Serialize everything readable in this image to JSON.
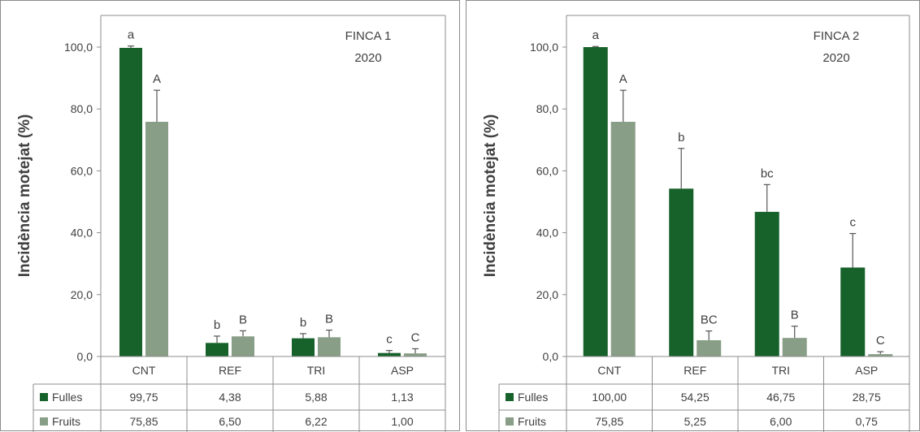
{
  "colors": {
    "fulles": "#17612a",
    "fruits": "#889e86",
    "text": "#404040",
    "grid": "#8c8c8c"
  },
  "chart_data": [
    {
      "type": "bar",
      "title": "FINCA 1",
      "subtitle": "2020",
      "ylabel": "Incidència motejat (%)",
      "ylim": [
        0,
        100
      ],
      "yticks": [
        "0,0",
        "20,0",
        "40,0",
        "60,0",
        "80,0",
        "100,0"
      ],
      "categories": [
        "CNT",
        "REF",
        "TRI",
        "ASP"
      ],
      "series": [
        {
          "name": "Fulles",
          "values": [
            99.75,
            4.38,
            5.88,
            1.13
          ],
          "errors": [
            0.6,
            2.2,
            1.5,
            0.8
          ],
          "letters": [
            "a",
            "b",
            "b",
            "c"
          ],
          "labels": [
            "99,75",
            "4,38",
            "5,88",
            "1,13"
          ]
        },
        {
          "name": "Fruits",
          "values": [
            75.85,
            6.5,
            6.22,
            1.0
          ],
          "errors": [
            10.2,
            1.8,
            2.3,
            1.5
          ],
          "letters": [
            "A",
            "B",
            "B",
            "C"
          ],
          "labels": [
            "75,85",
            "6,50",
            "6,22",
            "1,00"
          ]
        }
      ]
    },
    {
      "type": "bar",
      "title": "FINCA 2",
      "subtitle": "2020",
      "ylabel": "Incidència motejat (%)",
      "ylim": [
        0,
        100
      ],
      "yticks": [
        "0,0",
        "20,0",
        "40,0",
        "60,0",
        "80,0",
        "100,0"
      ],
      "categories": [
        "CNT",
        "REF",
        "TRI",
        "ASP"
      ],
      "series": [
        {
          "name": "Fulles",
          "values": [
            100.0,
            54.25,
            46.75,
            28.75
          ],
          "errors": [
            0.2,
            13.0,
            8.8,
            11.0
          ],
          "letters": [
            "a",
            "b",
            "bc",
            "c"
          ],
          "labels": [
            "100,00",
            "54,25",
            "46,75",
            "28,75"
          ]
        },
        {
          "name": "Fruits",
          "values": [
            75.85,
            5.25,
            6.0,
            0.75
          ],
          "errors": [
            10.2,
            3.0,
            3.8,
            0.8
          ],
          "letters": [
            "A",
            "BC",
            "B",
            "C"
          ],
          "labels": [
            "75,85",
            "5,25",
            "6,00",
            "0,75"
          ]
        }
      ]
    }
  ]
}
